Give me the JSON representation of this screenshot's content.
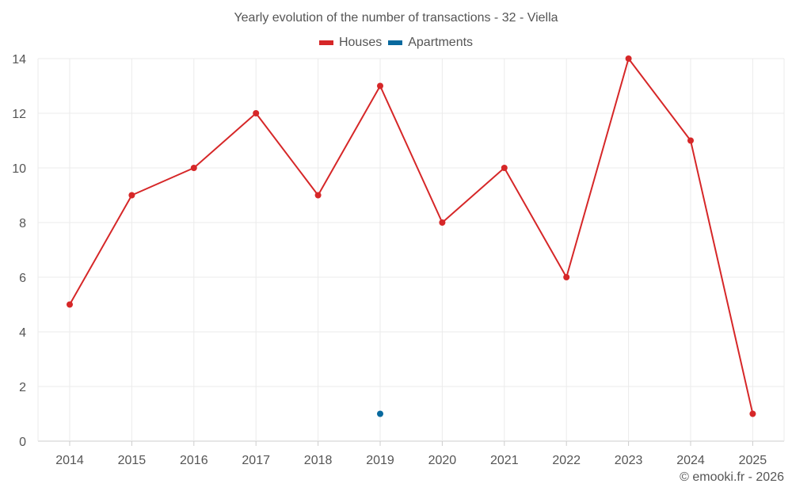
{
  "chart_data": {
    "type": "line",
    "title": "Yearly evolution of the number of transactions - 32 - Viella",
    "categories": [
      "2014",
      "2015",
      "2016",
      "2017",
      "2018",
      "2019",
      "2020",
      "2021",
      "2022",
      "2023",
      "2024",
      "2025"
    ],
    "series": [
      {
        "name": "Houses",
        "color": "#d62728",
        "values": [
          5,
          9,
          10,
          12,
          9,
          13,
          8,
          10,
          6,
          14,
          11,
          1
        ]
      },
      {
        "name": "Apartments",
        "color": "#08699e",
        "values": [
          null,
          null,
          null,
          null,
          null,
          1,
          null,
          null,
          null,
          null,
          null,
          null
        ]
      }
    ],
    "ylim": [
      0,
      14
    ],
    "yticks": [
      0,
      2,
      4,
      6,
      8,
      10,
      12,
      14
    ],
    "xlabel": "",
    "ylabel": "",
    "grid": true,
    "legend_position": "top-center"
  },
  "credit": "© emooki.fr - 2026"
}
